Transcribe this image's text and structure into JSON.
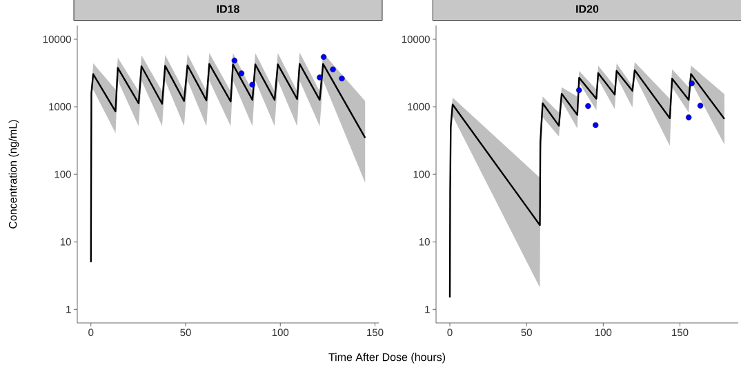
{
  "chart_data": [
    {
      "type": "line",
      "title": "ID18",
      "xlabel": "Time After Dose (hours)",
      "ylabel": "Concentration (ng/mL)",
      "log": "y",
      "xlim": [
        -7.2,
        152
      ],
      "ylim": [
        0.63,
        16000
      ],
      "xticks": [
        0,
        50,
        100,
        150
      ],
      "yticks": [
        1,
        10,
        100,
        1000,
        10000
      ],
      "series": [
        {
          "color": "#000000",
          "x": [
            0,
            0.25,
            1.2,
            13,
            14.2,
            25.2,
            26.7,
            37.6,
            39.2,
            49.2,
            51,
            61,
            62.5,
            73.8,
            75,
            85.3,
            86.8,
            97,
            98.7,
            108.9,
            110.2,
            120.8,
            122.6,
            144.8
          ],
          "values": [
            5,
            1600,
            3055,
            855,
            3770,
            1125,
            3980,
            1107,
            4040,
            1216,
            4100,
            1240,
            4300,
            1200,
            4240,
            1265,
            4240,
            1265,
            4240,
            1300,
            4300,
            1265,
            4300,
            348
          ],
          "lower": [
            5,
            1600,
            1800,
            408,
            2450,
            515,
            2450,
            515,
            2450,
            515,
            2450,
            515,
            2450,
            515,
            2450,
            515,
            2450,
            515,
            2450,
            515,
            2450,
            515,
            2450,
            75
          ],
          "upper": [
            5,
            1600,
            4400,
            1800,
            5350,
            1700,
            5790,
            1700,
            5880,
            1700,
            6020,
            1700,
            6260,
            1700,
            6260,
            1700,
            6260,
            1700,
            6260,
            1700,
            6360,
            1700,
            6260,
            1216
          ]
        },
        {
          "type": "scatter",
          "color": "#0000ff",
          "x": [
            75.8,
            79.5,
            85.2,
            120.8,
            122.9,
            127.8,
            132.5
          ],
          "values": [
            4840,
            3125,
            2130,
            2720,
            5450,
            3575,
            2630
          ]
        }
      ]
    },
    {
      "type": "line",
      "title": "ID20",
      "log": "y",
      "xlim": [
        -9,
        188
      ],
      "ylim": [
        0.63,
        16000
      ],
      "xticks": [
        0,
        50,
        100,
        150
      ],
      "yticks": [
        1,
        10,
        100,
        1000,
        10000
      ],
      "series": [
        {
          "color": "#000000",
          "x": [
            0,
            0.2,
            0.6,
            1.8,
            58.7,
            59,
            60.5,
            71.1,
            72.9,
            83.1,
            84.3,
            95.5,
            96.7,
            107.5,
            108.7,
            119,
            120.5,
            143.4,
            144.9,
            155.7,
            157.2,
            179
          ],
          "values": [
            1.5,
            56,
            515,
            1080,
            17.7,
            300,
            1125,
            524,
            1560,
            760,
            2690,
            1315,
            3150,
            1515,
            3400,
            1725,
            3490,
            676,
            2610,
            1265,
            3055,
            660
          ],
          "lower": [
            1.5,
            56,
            400,
            730,
            2.1,
            150,
            700,
            362,
            1216,
            477,
            2270,
            890,
            2550,
            925,
            2760,
            980,
            2870,
            265,
            1940,
            820,
            2370,
            276
          ],
          "upper": [
            1.5,
            56,
            700,
            1370,
            89,
            500,
            1420,
            820,
            1940,
            1420,
            3400,
            1800,
            4070,
            2020,
            4400,
            2040,
            4580,
            1315,
            3600,
            1940,
            4070,
            1540
          ]
        },
        {
          "type": "scatter",
          "color": "#0000ff",
          "x": [
            84.2,
            90.1,
            95.0,
            155.7,
            157.7,
            163.3
          ],
          "values": [
            1765,
            1025,
            536,
            698,
            2220,
            1040
          ]
        }
      ]
    }
  ]
}
